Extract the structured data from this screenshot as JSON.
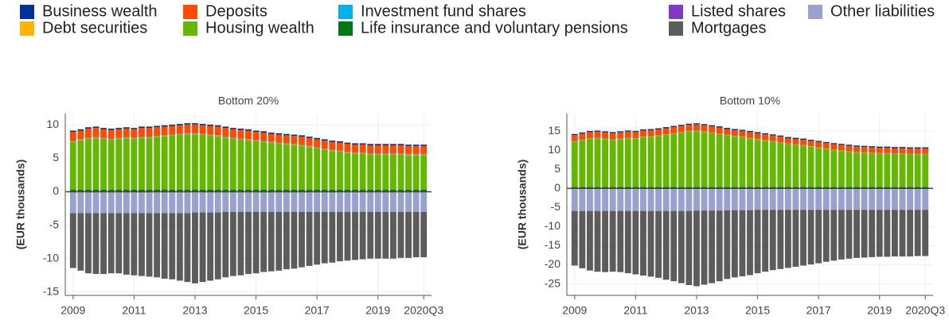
{
  "chart_data": [
    {
      "type": "bar",
      "stacked": true,
      "title": "Bottom 20%",
      "y_label": "(EUR thousands)",
      "categories": [
        "2009",
        null,
        null,
        null,
        null,
        null,
        null,
        null,
        "2011",
        null,
        null,
        null,
        null,
        null,
        null,
        null,
        "2013",
        null,
        null,
        null,
        null,
        null,
        null,
        null,
        "2015",
        null,
        null,
        null,
        null,
        null,
        null,
        null,
        "2017",
        null,
        null,
        null,
        null,
        null,
        null,
        null,
        "2019",
        null,
        null,
        null,
        null,
        null,
        "2020Q3"
      ],
      "ylim": [
        -15.5,
        11.7
      ],
      "yticks": [
        -15,
        -10,
        -5,
        0,
        5,
        10
      ],
      "grid": true,
      "series": [
        {
          "name": "Business wealth",
          "color": "#003299",
          "values": [
            0.2,
            0.2,
            0.2,
            0.2,
            0.2,
            0.2,
            0.2,
            0.2,
            0.2,
            0.2,
            0.2,
            0.2,
            0.2,
            0.2,
            0.2,
            0.2,
            0.2,
            0.2,
            0.2,
            0.2,
            0.2,
            0.2,
            0.2,
            0.2,
            0.2,
            0.2,
            0.2,
            0.2,
            0.2,
            0.2,
            0.2,
            0.2,
            0.2,
            0.2,
            0.2,
            0.2,
            0.2,
            0.2,
            0.2,
            0.2,
            0.2,
            0.2,
            0.2,
            0.2,
            0.2,
            0.2,
            0.2
          ]
        },
        {
          "name": "Deposits",
          "color": "#ff4b00",
          "values": [
            1.3,
            1.3,
            1.4,
            1.4,
            1.3,
            1.3,
            1.3,
            1.3,
            1.3,
            1.3,
            1.3,
            1.3,
            1.3,
            1.3,
            1.3,
            1.3,
            1.3,
            1.3,
            1.3,
            1.3,
            1.3,
            1.3,
            1.3,
            1.3,
            1.2,
            1.2,
            1.2,
            1.2,
            1.2,
            1.2,
            1.2,
            1.2,
            1.2,
            1.2,
            1.2,
            1.2,
            1.2,
            1.2,
            1.2,
            1.2,
            1.2,
            1.2,
            1.2,
            1.2,
            1.2,
            1.2,
            1.2
          ]
        },
        {
          "name": "Investment fund shares",
          "color": "#00b1ea",
          "values": [
            0.05,
            0.05,
            0.05,
            0.05,
            0.05,
            0.05,
            0.05,
            0.05,
            0.05,
            0.05,
            0.05,
            0.05,
            0.05,
            0.05,
            0.05,
            0.05,
            0.05,
            0.05,
            0.05,
            0.05,
            0.05,
            0.05,
            0.05,
            0.05,
            0.05,
            0.05,
            0.05,
            0.05,
            0.05,
            0.05,
            0.05,
            0.05,
            0.05,
            0.05,
            0.05,
            0.05,
            0.05,
            0.05,
            0.05,
            0.05,
            0.05,
            0.05,
            0.05,
            0.05,
            0.05,
            0.05,
            0.05
          ]
        },
        {
          "name": "Listed shares",
          "color": "#8139c6",
          "values": [
            0.05,
            0.05,
            0.05,
            0.05,
            0.05,
            0.05,
            0.05,
            0.05,
            0.05,
            0.05,
            0.05,
            0.05,
            0.05,
            0.05,
            0.05,
            0.05,
            0.05,
            0.05,
            0.05,
            0.05,
            0.05,
            0.05,
            0.05,
            0.05,
            0.05,
            0.05,
            0.05,
            0.05,
            0.05,
            0.05,
            0.05,
            0.05,
            0.05,
            0.05,
            0.05,
            0.05,
            0.05,
            0.05,
            0.05,
            0.05,
            0.05,
            0.05,
            0.05,
            0.05,
            0.05,
            0.05,
            0.05
          ]
        },
        {
          "name": "Other liabilities",
          "color": "#98a1d0",
          "values": [
            -3.2,
            -3.2,
            -3.2,
            -3.2,
            -3.2,
            -3.2,
            -3.2,
            -3.2,
            -3.2,
            -3.2,
            -3.2,
            -3.2,
            -3.2,
            -3.2,
            -3.2,
            -3.2,
            -3.1,
            -3.1,
            -3.1,
            -3.1,
            -3.0,
            -3.0,
            -3.0,
            -3.0,
            -3.0,
            -3.0,
            -3.0,
            -3.0,
            -3.0,
            -3.0,
            -3.0,
            -3.0,
            -3.0,
            -3.0,
            -3.0,
            -3.0,
            -3.0,
            -3.0,
            -3.0,
            -3.0,
            -3.0,
            -3.0,
            -3.0,
            -3.0,
            -3.0,
            -3.0,
            -3.0
          ]
        },
        {
          "name": "Debt securities",
          "color": "#ffb400",
          "values": [
            0.05,
            0.05,
            0.05,
            0.05,
            0.05,
            0.05,
            0.05,
            0.05,
            0.05,
            0.05,
            0.05,
            0.05,
            0.05,
            0.05,
            0.05,
            0.05,
            0.05,
            0.05,
            0.05,
            0.05,
            0.05,
            0.05,
            0.05,
            0.05,
            0.05,
            0.05,
            0.05,
            0.05,
            0.05,
            0.05,
            0.05,
            0.05,
            0.05,
            0.05,
            0.05,
            0.05,
            0.05,
            0.05,
            0.05,
            0.05,
            0.05,
            0.05,
            0.05,
            0.05,
            0.05,
            0.05,
            0.05
          ]
        },
        {
          "name": "Housing wealth",
          "color": "#65b800",
          "values": [
            7.2,
            7.4,
            7.6,
            7.7,
            7.6,
            7.5,
            7.6,
            7.7,
            7.6,
            7.8,
            7.8,
            7.9,
            8.0,
            8.1,
            8.2,
            8.3,
            8.3,
            8.2,
            8.1,
            8.0,
            7.8,
            7.6,
            7.5,
            7.4,
            7.3,
            7.2,
            7.0,
            6.9,
            6.8,
            6.7,
            6.6,
            6.4,
            6.2,
            6.0,
            5.8,
            5.7,
            5.5,
            5.4,
            5.4,
            5.3,
            5.3,
            5.3,
            5.3,
            5.3,
            5.2,
            5.2,
            5.2
          ]
        },
        {
          "name": "Life insurance and voluntary pensions",
          "color": "#007816",
          "values": [
            0.3,
            0.3,
            0.3,
            0.3,
            0.3,
            0.3,
            0.3,
            0.3,
            0.3,
            0.3,
            0.3,
            0.3,
            0.3,
            0.3,
            0.3,
            0.3,
            0.3,
            0.3,
            0.3,
            0.3,
            0.3,
            0.3,
            0.3,
            0.3,
            0.3,
            0.3,
            0.3,
            0.3,
            0.3,
            0.3,
            0.3,
            0.3,
            0.3,
            0.3,
            0.3,
            0.3,
            0.3,
            0.3,
            0.3,
            0.3,
            0.3,
            0.3,
            0.3,
            0.3,
            0.3,
            0.3,
            0.3
          ]
        },
        {
          "name": "Mortgages",
          "color": "#5c5c5c",
          "values": [
            -8.2,
            -8.6,
            -9.0,
            -9.1,
            -9.1,
            -9.0,
            -9.0,
            -9.2,
            -9.3,
            -9.4,
            -9.5,
            -9.6,
            -9.8,
            -9.9,
            -10.1,
            -10.3,
            -10.6,
            -10.4,
            -10.2,
            -10.0,
            -9.8,
            -9.6,
            -9.5,
            -9.3,
            -9.2,
            -9.0,
            -8.9,
            -8.8,
            -8.6,
            -8.5,
            -8.3,
            -8.1,
            -7.9,
            -7.7,
            -7.6,
            -7.4,
            -7.3,
            -7.2,
            -7.1,
            -7.0,
            -7.0,
            -7.0,
            -7.0,
            -6.9,
            -6.9,
            -6.8,
            -6.8
          ]
        }
      ]
    },
    {
      "type": "bar",
      "stacked": true,
      "title": "Bottom 10%",
      "y_label": "(EUR thousands)",
      "categories": [
        "2009",
        null,
        null,
        null,
        null,
        null,
        null,
        null,
        "2011",
        null,
        null,
        null,
        null,
        null,
        null,
        null,
        "2013",
        null,
        null,
        null,
        null,
        null,
        null,
        null,
        "2015",
        null,
        null,
        null,
        null,
        null,
        null,
        null,
        "2017",
        null,
        null,
        null,
        null,
        null,
        null,
        null,
        "2019",
        null,
        null,
        null,
        null,
        null,
        "2020Q3"
      ],
      "ylim": [
        -28,
        19.6
      ],
      "yticks": [
        -25,
        -20,
        -15,
        -10,
        -5,
        0,
        5,
        10,
        15
      ],
      "grid": true,
      "series": [
        {
          "name": "Business wealth",
          "color": "#003299",
          "values": [
            0.3,
            0.3,
            0.3,
            0.3,
            0.3,
            0.3,
            0.3,
            0.3,
            0.3,
            0.3,
            0.3,
            0.3,
            0.3,
            0.3,
            0.3,
            0.3,
            0.3,
            0.3,
            0.3,
            0.3,
            0.3,
            0.3,
            0.3,
            0.3,
            0.3,
            0.3,
            0.3,
            0.3,
            0.3,
            0.3,
            0.3,
            0.3,
            0.3,
            0.3,
            0.3,
            0.3,
            0.3,
            0.3,
            0.3,
            0.3,
            0.3,
            0.3,
            0.3,
            0.3,
            0.3,
            0.3,
            0.3
          ]
        },
        {
          "name": "Deposits",
          "color": "#ff4b00",
          "values": [
            1.6,
            1.6,
            1.6,
            1.6,
            1.6,
            1.6,
            1.6,
            1.6,
            1.6,
            1.6,
            1.6,
            1.6,
            1.6,
            1.6,
            1.6,
            1.6,
            1.6,
            1.6,
            1.6,
            1.6,
            1.5,
            1.5,
            1.5,
            1.5,
            1.5,
            1.5,
            1.5,
            1.5,
            1.4,
            1.4,
            1.4,
            1.4,
            1.4,
            1.4,
            1.4,
            1.4,
            1.4,
            1.4,
            1.4,
            1.4,
            1.4,
            1.4,
            1.4,
            1.4,
            1.4,
            1.4,
            1.4
          ]
        },
        {
          "name": "Investment fund shares",
          "color": "#00b1ea",
          "values": [
            0.05,
            0.05,
            0.05,
            0.05,
            0.05,
            0.05,
            0.05,
            0.05,
            0.05,
            0.05,
            0.05,
            0.05,
            0.05,
            0.05,
            0.05,
            0.05,
            0.05,
            0.05,
            0.05,
            0.05,
            0.05,
            0.05,
            0.05,
            0.05,
            0.05,
            0.05,
            0.05,
            0.05,
            0.05,
            0.05,
            0.05,
            0.05,
            0.05,
            0.05,
            0.05,
            0.05,
            0.05,
            0.05,
            0.05,
            0.05,
            0.05,
            0.05,
            0.05,
            0.05,
            0.05,
            0.05,
            0.05
          ]
        },
        {
          "name": "Listed shares",
          "color": "#8139c6",
          "values": [
            0.05,
            0.05,
            0.05,
            0.05,
            0.05,
            0.05,
            0.05,
            0.05,
            0.05,
            0.05,
            0.05,
            0.05,
            0.05,
            0.05,
            0.05,
            0.05,
            0.05,
            0.05,
            0.05,
            0.05,
            0.05,
            0.05,
            0.05,
            0.05,
            0.05,
            0.05,
            0.05,
            0.05,
            0.05,
            0.05,
            0.05,
            0.05,
            0.05,
            0.05,
            0.05,
            0.05,
            0.05,
            0.05,
            0.05,
            0.05,
            0.05,
            0.05,
            0.05,
            0.05,
            0.05,
            0.05,
            0.05
          ]
        },
        {
          "name": "Other liabilities",
          "color": "#98a1d0",
          "values": [
            -5.9,
            -5.9,
            -5.9,
            -5.9,
            -5.9,
            -5.9,
            -5.9,
            -5.9,
            -5.9,
            -5.9,
            -5.9,
            -5.9,
            -5.9,
            -5.9,
            -5.9,
            -5.9,
            -5.8,
            -5.8,
            -5.8,
            -5.8,
            -5.7,
            -5.7,
            -5.7,
            -5.7,
            -5.6,
            -5.6,
            -5.6,
            -5.6,
            -5.6,
            -5.6,
            -5.6,
            -5.6,
            -5.6,
            -5.6,
            -5.6,
            -5.6,
            -5.6,
            -5.6,
            -5.6,
            -5.6,
            -5.6,
            -5.6,
            -5.6,
            -5.6,
            -5.6,
            -5.6,
            -5.6
          ]
        },
        {
          "name": "Debt securities",
          "color": "#ffb400",
          "values": [
            0.05,
            0.05,
            0.05,
            0.05,
            0.05,
            0.05,
            0.05,
            0.05,
            0.05,
            0.05,
            0.05,
            0.05,
            0.05,
            0.05,
            0.05,
            0.05,
            0.05,
            0.05,
            0.05,
            0.05,
            0.05,
            0.05,
            0.05,
            0.05,
            0.05,
            0.05,
            0.05,
            0.05,
            0.05,
            0.05,
            0.05,
            0.05,
            0.05,
            0.05,
            0.05,
            0.05,
            0.05,
            0.05,
            0.05,
            0.05,
            0.05,
            0.05,
            0.05,
            0.05,
            0.05,
            0.05,
            0.05
          ]
        },
        {
          "name": "Housing wealth",
          "color": "#65b800",
          "values": [
            11.8,
            12.2,
            12.6,
            12.7,
            12.5,
            12.3,
            12.5,
            12.7,
            12.6,
            13.0,
            13.1,
            13.3,
            13.6,
            13.9,
            14.2,
            14.5,
            14.6,
            14.4,
            14.1,
            13.8,
            13.5,
            13.2,
            13.0,
            12.7,
            12.4,
            12.1,
            11.8,
            11.5,
            11.2,
            11.0,
            10.8,
            10.5,
            10.2,
            9.9,
            9.6,
            9.4,
            9.2,
            9.0,
            8.9,
            8.8,
            8.7,
            8.7,
            8.6,
            8.6,
            8.5,
            8.5,
            8.5
          ]
        },
        {
          "name": "Life insurance and voluntary pensions",
          "color": "#007816",
          "values": [
            0.4,
            0.4,
            0.4,
            0.4,
            0.4,
            0.4,
            0.4,
            0.4,
            0.4,
            0.4,
            0.4,
            0.4,
            0.4,
            0.4,
            0.4,
            0.4,
            0.4,
            0.4,
            0.4,
            0.4,
            0.4,
            0.4,
            0.4,
            0.4,
            0.4,
            0.4,
            0.4,
            0.4,
            0.4,
            0.4,
            0.4,
            0.4,
            0.4,
            0.4,
            0.4,
            0.4,
            0.4,
            0.4,
            0.4,
            0.4,
            0.4,
            0.4,
            0.4,
            0.4,
            0.4,
            0.4,
            0.4
          ]
        },
        {
          "name": "Mortgages",
          "color": "#5c5c5c",
          "values": [
            -14.3,
            -15.0,
            -15.6,
            -15.9,
            -16.0,
            -15.9,
            -16.0,
            -16.3,
            -16.6,
            -16.9,
            -17.2,
            -17.5,
            -18.0,
            -18.4,
            -18.9,
            -19.4,
            -19.8,
            -19.4,
            -19.0,
            -18.5,
            -18.0,
            -17.6,
            -17.3,
            -17.0,
            -16.6,
            -16.2,
            -15.8,
            -15.5,
            -15.2,
            -14.9,
            -14.6,
            -14.3,
            -14.0,
            -13.6,
            -13.3,
            -13.0,
            -12.8,
            -12.6,
            -12.5,
            -12.4,
            -12.3,
            -12.3,
            -12.2,
            -12.2,
            -12.2,
            -12.1,
            -12.1
          ]
        }
      ]
    }
  ]
}
